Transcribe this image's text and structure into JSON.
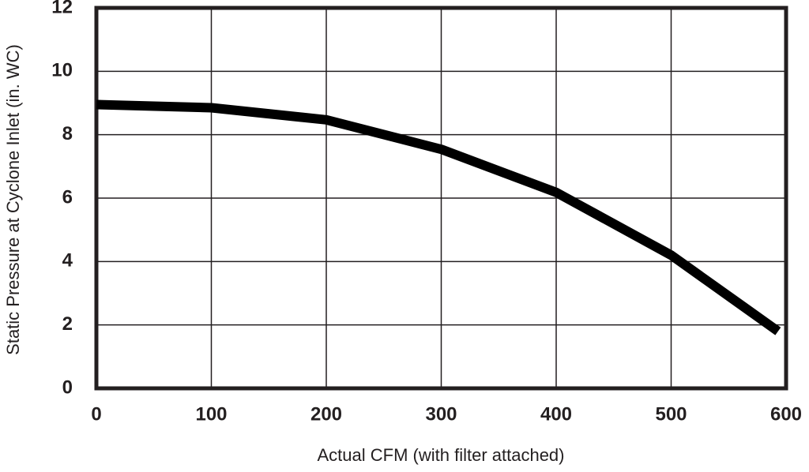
{
  "chart_data": {
    "type": "line",
    "xlabel": "Actual CFM (with filter attached)",
    "ylabel": "Static Pressure at Cyclone Inlet (in. WC)",
    "x": [
      0,
      100,
      200,
      300,
      400,
      500,
      593
    ],
    "values": [
      8.95,
      8.85,
      8.47,
      7.54,
      6.18,
      4.2,
      1.8
    ],
    "color": "#000000",
    "xlim": [
      0,
      600
    ],
    "xticks": [
      0,
      100,
      200,
      300,
      400,
      500,
      600
    ],
    "ylim": [
      0,
      12
    ],
    "yticks": [
      0,
      2,
      4,
      6,
      8,
      10,
      12
    ],
    "grid": true
  }
}
